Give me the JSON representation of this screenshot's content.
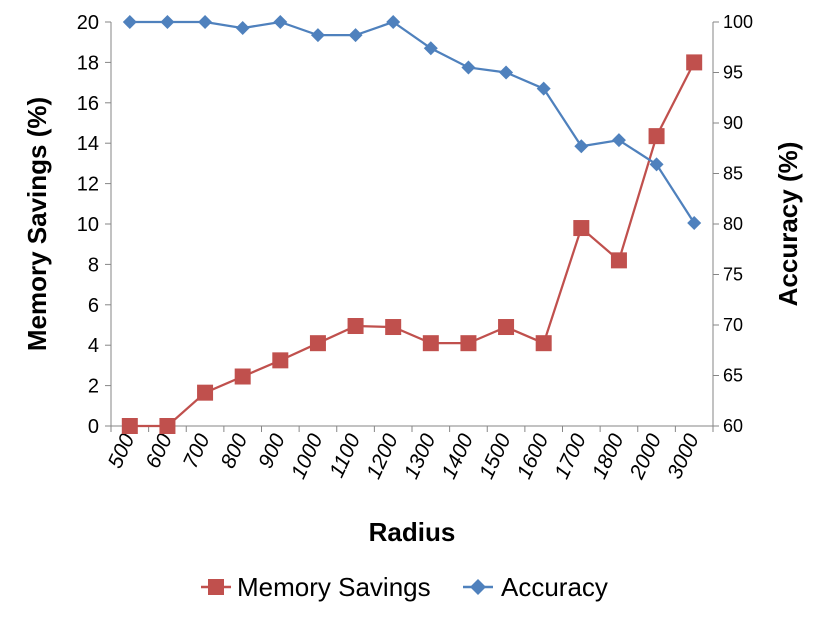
{
  "chart_data": {
    "type": "line",
    "xlabel": "Radius",
    "y_left_label": "Memory Savings (%)",
    "y_right_label": "Accuracy (%)",
    "categories": [
      "500",
      "600",
      "700",
      "800",
      "900",
      "1000",
      "1100",
      "1200",
      "1300",
      "1400",
      "1500",
      "1600",
      "1700",
      "1800",
      "2000",
      "3000"
    ],
    "y_left_range": [
      0,
      20
    ],
    "y_left_ticks": [
      0,
      2,
      4,
      6,
      8,
      10,
      12,
      14,
      16,
      18,
      20
    ],
    "y_right_range": [
      60,
      100
    ],
    "y_right_ticks": [
      60,
      65,
      70,
      75,
      80,
      85,
      90,
      95,
      100
    ],
    "grid": false,
    "legend_position": "bottom",
    "series": [
      {
        "name": "Memory Savings",
        "axis": "left",
        "marker": "square",
        "color": "#c0504d",
        "values": [
          0,
          0,
          1.65,
          2.45,
          3.25,
          4.1,
          4.95,
          4.9,
          4.1,
          4.1,
          4.9,
          4.1,
          9.8,
          8.2,
          14.35,
          18.0
        ]
      },
      {
        "name": "Accuracy",
        "axis": "right",
        "marker": "diamond",
        "color": "#4f81bd",
        "values": [
          100,
          100,
          100,
          99.4,
          100,
          98.7,
          98.7,
          100,
          97.4,
          95.5,
          95.0,
          93.4,
          87.7,
          88.3,
          85.9,
          80.1
        ]
      }
    ]
  }
}
